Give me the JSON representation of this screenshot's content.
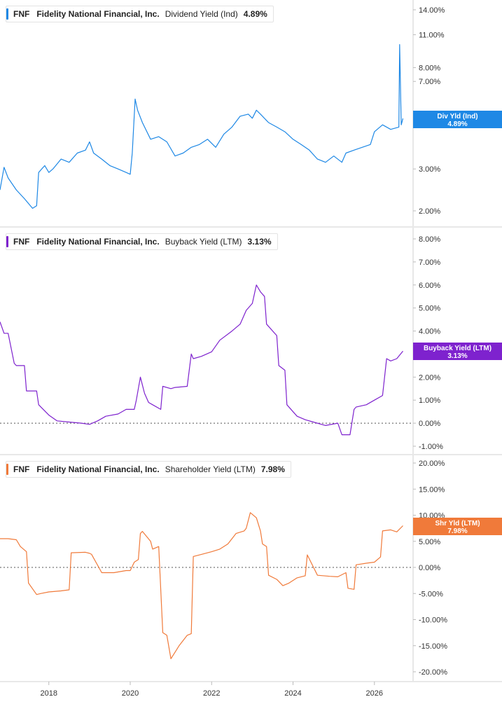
{
  "chart_data": [
    {
      "type": "line",
      "ticker": "FNF",
      "company": "Fidelity National Financial, Inc.",
      "metric": "Dividend Yield (Ind)",
      "value_label": "4.89%",
      "flag_label": "Div Yld (Ind)",
      "color": "#1e88e5",
      "y_scale": "log",
      "y_ticks": [
        {
          "value": 14,
          "label": "14.00%"
        },
        {
          "value": 11,
          "label": "11.00%"
        },
        {
          "value": 8,
          "label": "8.00%"
        },
        {
          "value": 7,
          "label": "7.00%"
        },
        {
          "value": 5,
          "label": "5.00%"
        },
        {
          "value": 3,
          "label": "3.00%"
        },
        {
          "value": 2,
          "label": "2.00%"
        }
      ],
      "x": [
        2016.8,
        2016.9,
        2017.0,
        2017.2,
        2017.4,
        2017.6,
        2017.7,
        2017.75,
        2017.9,
        2018.0,
        2018.1,
        2018.3,
        2018.5,
        2018.7,
        2018.9,
        2019.0,
        2019.1,
        2019.3,
        2019.5,
        2019.7,
        2019.9,
        2020.0,
        2020.05,
        2020.12,
        2020.18,
        2020.3,
        2020.5,
        2020.7,
        2020.9,
        2021.1,
        2021.3,
        2021.5,
        2021.7,
        2021.9,
        2022.1,
        2022.3,
        2022.5,
        2022.7,
        2022.9,
        2023.0,
        2023.1,
        2023.2,
        2023.4,
        2023.6,
        2023.8,
        2024.0,
        2024.2,
        2024.4,
        2024.6,
        2024.8,
        2025.0,
        2025.2,
        2025.3,
        2025.5,
        2025.7,
        2025.9,
        2026.0,
        2026.2,
        2026.4,
        2026.6,
        2026.62,
        2026.66,
        2026.7
      ],
      "values": [
        2.45,
        3.05,
        2.75,
        2.45,
        2.25,
        2.05,
        2.1,
        2.9,
        3.1,
        2.9,
        3.0,
        3.3,
        3.2,
        3.5,
        3.6,
        3.9,
        3.5,
        3.3,
        3.1,
        3.0,
        2.9,
        2.85,
        3.5,
        5.9,
        5.3,
        4.7,
        4.0,
        4.1,
        3.9,
        3.4,
        3.5,
        3.7,
        3.8,
        4.0,
        3.7,
        4.2,
        4.5,
        5.0,
        5.1,
        4.9,
        5.3,
        5.1,
        4.7,
        4.5,
        4.3,
        4.0,
        3.8,
        3.6,
        3.3,
        3.2,
        3.4,
        3.2,
        3.5,
        3.6,
        3.7,
        3.8,
        4.3,
        4.6,
        4.4,
        4.5,
        10.0,
        4.6,
        4.89
      ]
    },
    {
      "type": "line",
      "ticker": "FNF",
      "company": "Fidelity National Financial, Inc.",
      "metric": "Buyback Yield (LTM)",
      "value_label": "3.13%",
      "flag_label": "Buyback Yield (LTM)",
      "color": "#7e22ce",
      "y_scale": "linear",
      "y_ticks": [
        {
          "value": 8,
          "label": "8.00%"
        },
        {
          "value": 7,
          "label": "7.00%"
        },
        {
          "value": 6,
          "label": "6.00%"
        },
        {
          "value": 5,
          "label": "5.00%"
        },
        {
          "value": 4,
          "label": "4.00%"
        },
        {
          "value": 3,
          "label": "3.00%"
        },
        {
          "value": 2,
          "label": "2.00%"
        },
        {
          "value": 1,
          "label": "1.00%"
        },
        {
          "value": 0,
          "label": "0.00%"
        },
        {
          "value": -1,
          "label": "-1.00%"
        }
      ],
      "x": [
        2016.8,
        2016.9,
        2017.0,
        2017.15,
        2017.2,
        2017.4,
        2017.45,
        2017.7,
        2017.75,
        2018.0,
        2018.2,
        2018.5,
        2018.8,
        2019.0,
        2019.2,
        2019.4,
        2019.7,
        2019.9,
        2020.1,
        2020.15,
        2020.25,
        2020.35,
        2020.45,
        2020.55,
        2020.75,
        2020.8,
        2021.0,
        2021.1,
        2021.4,
        2021.5,
        2021.55,
        2021.75,
        2022.0,
        2022.2,
        2022.5,
        2022.7,
        2022.85,
        2023.0,
        2023.1,
        2023.2,
        2023.3,
        2023.35,
        2023.6,
        2023.65,
        2023.8,
        2023.85,
        2024.0,
        2024.1,
        2024.3,
        2024.5,
        2024.8,
        2025.1,
        2025.2,
        2025.4,
        2025.5,
        2025.55,
        2025.8,
        2026.0,
        2026.2,
        2026.3,
        2026.4,
        2026.55,
        2026.7
      ],
      "values": [
        4.4,
        3.9,
        3.9,
        2.6,
        2.5,
        2.5,
        1.4,
        1.4,
        0.8,
        0.35,
        0.1,
        0.05,
        0.0,
        -0.05,
        0.1,
        0.3,
        0.4,
        0.6,
        0.6,
        1.0,
        2.0,
        1.3,
        0.9,
        0.8,
        0.6,
        1.6,
        1.5,
        1.55,
        1.6,
        3.0,
        2.8,
        2.9,
        3.1,
        3.6,
        4.0,
        4.3,
        4.9,
        5.2,
        6.0,
        5.7,
        5.5,
        4.3,
        3.8,
        2.5,
        2.3,
        0.8,
        0.5,
        0.3,
        0.15,
        0.05,
        -0.1,
        0.0,
        -0.5,
        -0.5,
        0.6,
        0.7,
        0.8,
        1.0,
        1.2,
        2.8,
        2.7,
        2.8,
        3.13
      ]
    },
    {
      "type": "line",
      "ticker": "FNF",
      "company": "Fidelity National Financial, Inc.",
      "metric": "Shareholder Yield (LTM)",
      "value_label": "7.98%",
      "flag_label": "Shr Yld (LTM)",
      "color": "#f07a3a",
      "y_scale": "linear",
      "y_ticks": [
        {
          "value": 20,
          "label": "20.00%"
        },
        {
          "value": 15,
          "label": "15.00%"
        },
        {
          "value": 10,
          "label": "10.00%"
        },
        {
          "value": 5,
          "label": "5.00%"
        },
        {
          "value": 0,
          "label": "0.00%"
        },
        {
          "value": -5,
          "label": "-5.00%"
        },
        {
          "value": -10,
          "label": "-10.00%"
        },
        {
          "value": -15,
          "label": "-15.00%"
        },
        {
          "value": -20,
          "label": "-20.00%"
        }
      ],
      "x_ticks": [
        "2018",
        "2020",
        "2022",
        "2024",
        "2026"
      ],
      "x": [
        2016.8,
        2017.0,
        2017.2,
        2017.3,
        2017.45,
        2017.5,
        2017.7,
        2017.8,
        2018.0,
        2018.3,
        2018.5,
        2018.55,
        2018.9,
        2019.0,
        2019.05,
        2019.3,
        2019.6,
        2019.9,
        2020.0,
        2020.1,
        2020.2,
        2020.25,
        2020.3,
        2020.5,
        2020.55,
        2020.7,
        2020.8,
        2020.9,
        2021.0,
        2021.2,
        2021.4,
        2021.5,
        2021.55,
        2021.75,
        2022.0,
        2022.2,
        2022.4,
        2022.6,
        2022.8,
        2022.85,
        2022.95,
        2023.1,
        2023.2,
        2023.25,
        2023.35,
        2023.4,
        2023.6,
        2023.75,
        2023.9,
        2024.1,
        2024.3,
        2024.35,
        2024.6,
        2024.9,
        2025.1,
        2025.3,
        2025.35,
        2025.5,
        2025.55,
        2025.8,
        2026.0,
        2026.15,
        2026.2,
        2026.4,
        2026.55,
        2026.7
      ],
      "values": [
        5.5,
        5.5,
        5.3,
        4.0,
        3.0,
        -3.0,
        -5.2,
        -5.0,
        -4.7,
        -4.5,
        -4.3,
        2.8,
        2.9,
        2.7,
        2.5,
        -1.0,
        -1.0,
        -0.6,
        -0.6,
        1.0,
        1.5,
        6.5,
        6.9,
        5.0,
        3.5,
        4.0,
        -12.5,
        -13.0,
        -17.5,
        -15.0,
        -13.0,
        -12.7,
        2.1,
        2.5,
        3.0,
        3.5,
        4.5,
        6.5,
        7.0,
        7.5,
        10.5,
        9.5,
        7.0,
        4.5,
        4.0,
        -1.5,
        -2.3,
        -3.5,
        -3.0,
        -2.0,
        -1.6,
        2.4,
        -1.5,
        -1.7,
        -1.8,
        -1.0,
        -4.0,
        -4.2,
        0.5,
        0.8,
        1.0,
        2.0,
        7.0,
        7.2,
        6.8,
        7.98
      ]
    }
  ]
}
